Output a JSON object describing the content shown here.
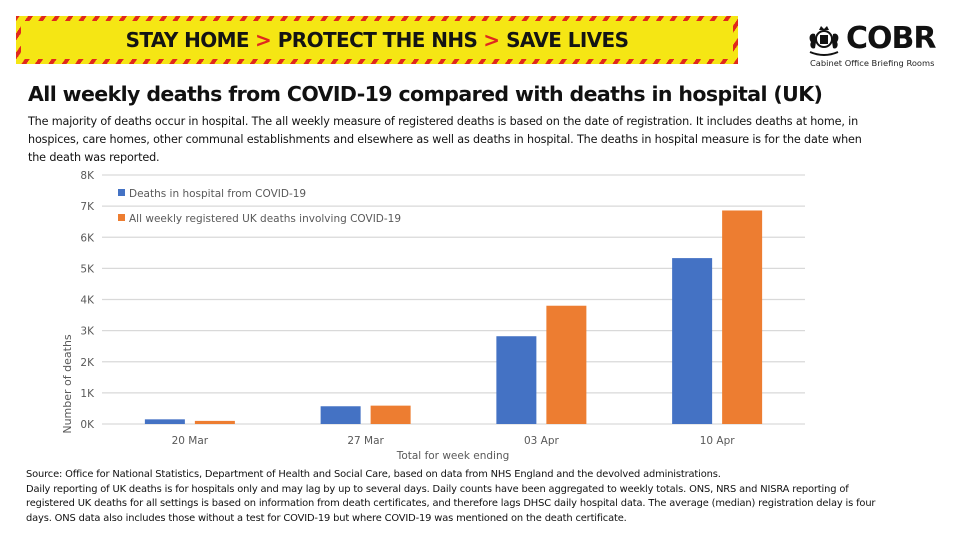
{
  "banner": {
    "slogan_parts": [
      "STAY HOME",
      "PROTECT THE NHS",
      "SAVE LIVES"
    ],
    "separator": ">",
    "colors": {
      "background": "#f5e614",
      "stripe": "#e0281e",
      "separator": "#e0281e"
    }
  },
  "logo": {
    "name": "COBR",
    "subtitle": "Cabinet Office Briefing Rooms",
    "crest_icon": "royal-coat-of-arms-icon"
  },
  "title": "All weekly deaths from COVID-19 compared with deaths in hospital (UK)",
  "subtitle_lines": [
    "The majority of deaths occur in hospital.  The all weekly measure of registered deaths is based on the date of registration. It includes deaths at home, in",
    "hospices, care homes, other communal establishments and elsewhere as well as deaths in hospital.  The deaths in hospital measure is for the date when",
    "the death was reported."
  ],
  "chart_data": {
    "type": "bar",
    "title": "All weekly deaths from COVID-19 compared with deaths in hospital (UK)",
    "xlabel": "Total for week ending",
    "ylabel": "Number of deaths",
    "categories": [
      "20 Mar",
      "27 Mar",
      "03 Apr",
      "10 Apr"
    ],
    "series": [
      {
        "name": "Deaths in hospital from COVID-19",
        "color": "#4472c4",
        "values": [
          150,
          570,
          2820,
          5330
        ]
      },
      {
        "name": "All weekly registered UK deaths involving COVID-19",
        "color": "#ed7d31",
        "values": [
          100,
          590,
          3800,
          6860
        ]
      }
    ],
    "ylim": [
      0,
      8000
    ],
    "yticks": [
      0,
      1000,
      2000,
      3000,
      4000,
      5000,
      6000,
      7000,
      8000
    ],
    "ytick_labels": [
      "0K",
      "1K",
      "2K",
      "3K",
      "4K",
      "5K",
      "6K",
      "7K",
      "8K"
    ],
    "grid": true,
    "legend_position": "top-left"
  },
  "footer_lines": [
    "Source: Office for National Statistics, Department of Health and Social Care, based on data from NHS England and the devolved administrations.",
    "Daily reporting of UK deaths is for hospitals only and may lag by up to several days.  Daily counts have been aggregated to weekly totals.  ONS, NRS and NISRA reporting of",
    "registered UK deaths for all settings is based on information from death certificates, and therefore lags DHSC daily hospital data.  The average (median) registration delay is four",
    "days.  ONS data also includes those without a test for COVID-19 but where COVID-19 was mentioned on the death certificate."
  ]
}
